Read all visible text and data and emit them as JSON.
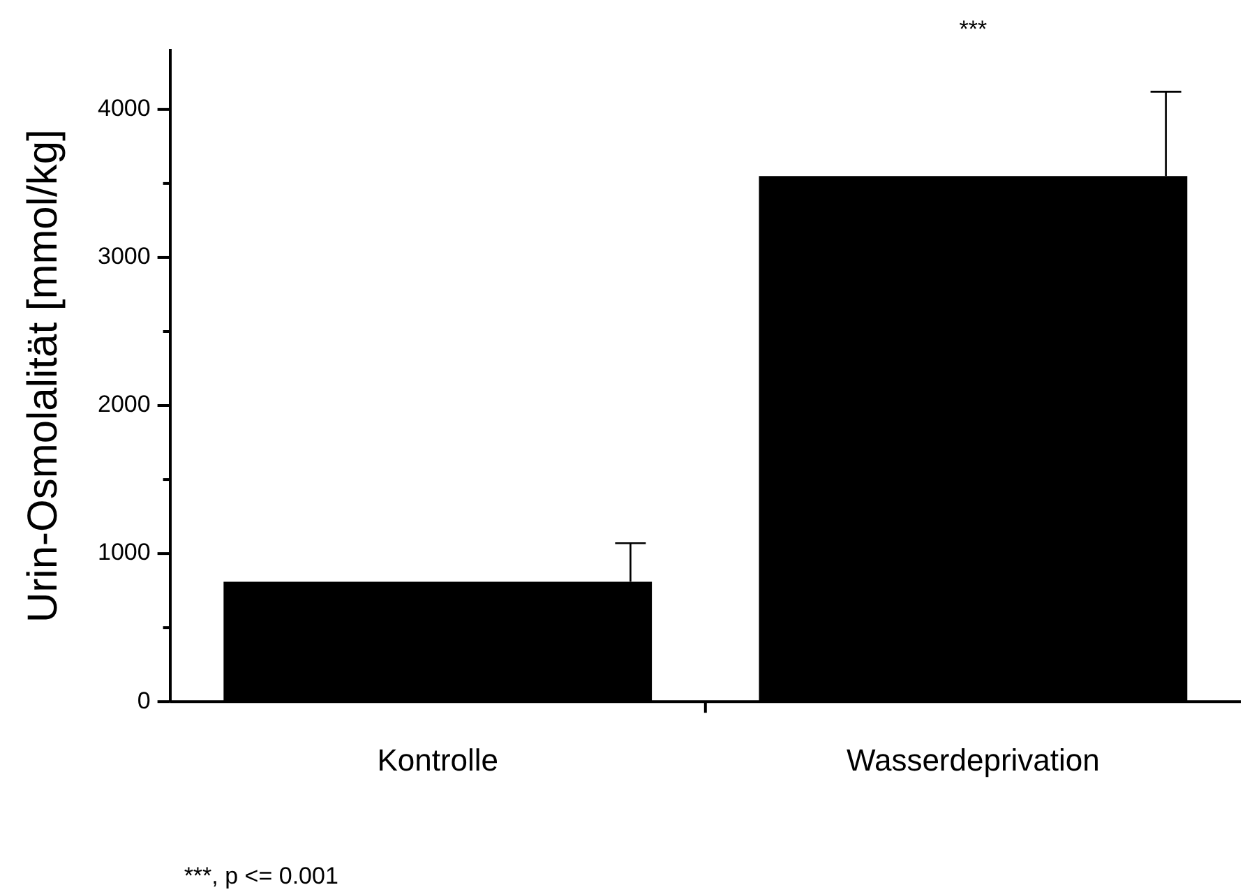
{
  "chart_data": {
    "type": "bar",
    "ylabel": "Urin-Osmolalität [mmol/kg]",
    "categories": [
      "Kontrolle",
      "Wasserdeprivation"
    ],
    "values": [
      810,
      3550
    ],
    "color": "#000000",
    "errors": [
      [
        810,
        1070
      ],
      [
        3550,
        4120
      ]
    ],
    "ylim": [
      0,
      4400
    ],
    "yticks": [
      0,
      {
        "value": 500,
        "label": null
      },
      1000,
      {
        "value": 1500,
        "label": null
      },
      2000,
      {
        "value": 2500,
        "label": null
      },
      3000,
      {
        "value": 3500,
        "label": null
      },
      4000
    ],
    "grid": false,
    "legend": false,
    "annotations": [
      "***",
      "***, p <= 0.001"
    ]
  }
}
